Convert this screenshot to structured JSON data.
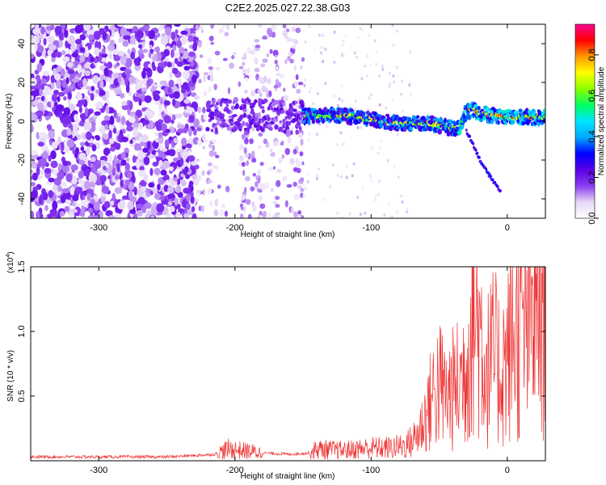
{
  "title": "C2E2.2025.027.22.38.G03",
  "chart_data": [
    {
      "type": "heatmap",
      "xlabel": "Height of straight line (km)",
      "ylabel": "Frequency (Hz)",
      "xlim": [
        -350,
        28
      ],
      "ylim": [
        -50,
        50
      ],
      "xticks": [
        -300,
        -200,
        -100,
        0
      ],
      "yticks": [
        -40,
        -20,
        0,
        20,
        40
      ],
      "colorbar": {
        "label": "Normalized spectral amplitude",
        "range": [
          0.0,
          0.95
        ],
        "ticks": [
          0.0,
          0.2,
          0.4,
          0.6,
          0.8
        ],
        "tick_labels": [
          "0.0",
          "0.2",
          "0.4",
          "0.6",
          "0.8"
        ],
        "colormap": [
          "#ffffff",
          "#e6d8f6",
          "#8a3cf0",
          "#5a00e6",
          "#0000ff",
          "#00a8ff",
          "#00e6ff",
          "#00ff60",
          "#8cff00",
          "#ffff00",
          "#ff9900",
          "#ff0000",
          "#ff0090"
        ]
      },
      "ridge": {
        "x": [
          -220,
          -200,
          -180,
          -160,
          -140,
          -120,
          -100,
          -80,
          -60,
          -50,
          -40,
          -35,
          -30,
          -25,
          -20,
          -10,
          0,
          10,
          20,
          28
        ],
        "frequency": [
          3,
          3,
          3,
          2,
          3,
          3,
          1,
          -1,
          -1,
          -2,
          -4,
          -3,
          5,
          6,
          4,
          3,
          2,
          2,
          2,
          2
        ]
      },
      "branch": {
        "x": [
          -30,
          -25,
          -20,
          -15,
          -10,
          -5
        ],
        "frequency": [
          -5,
          -12,
          -20,
          -26,
          -31,
          -36
        ]
      },
      "grid": false
    },
    {
      "type": "line",
      "xlabel": "Height of straight line (km)",
      "ylabel": "SNR (10 * v/v)",
      "y_scale_label": "(x10",
      "y_scale_exp": "4",
      "xlim": [
        -350,
        28
      ],
      "ylim": [
        0,
        1.5
      ],
      "xticks": [
        -300,
        -200,
        -100,
        0
      ],
      "yticks": [
        0.5,
        1.0,
        1.5
      ],
      "series": [
        {
          "color": "#ee3333",
          "x": [
            -350,
            -300,
            -250,
            -230,
            -215,
            -205,
            -195,
            -180,
            -160,
            -145,
            -140,
            -120,
            -100,
            -85,
            -75,
            -70,
            -65,
            -60,
            -55,
            -50,
            -45,
            -40,
            -35,
            -30,
            -25,
            -20,
            -15,
            -10,
            -5,
            0,
            5,
            10,
            15,
            20,
            25,
            28
          ],
          "y": [
            0.03,
            0.03,
            0.03,
            0.04,
            0.05,
            0.09,
            0.08,
            0.06,
            0.05,
            0.06,
            0.09,
            0.08,
            0.1,
            0.1,
            0.12,
            0.15,
            0.22,
            0.35,
            0.5,
            0.6,
            0.5,
            0.55,
            0.6,
            0.75,
            1.2,
            1.0,
            0.7,
            0.8,
            0.7,
            0.8,
            1.0,
            1.0,
            1.05,
            1.15,
            1.25,
            1.35
          ]
        }
      ],
      "grid": false
    }
  ]
}
